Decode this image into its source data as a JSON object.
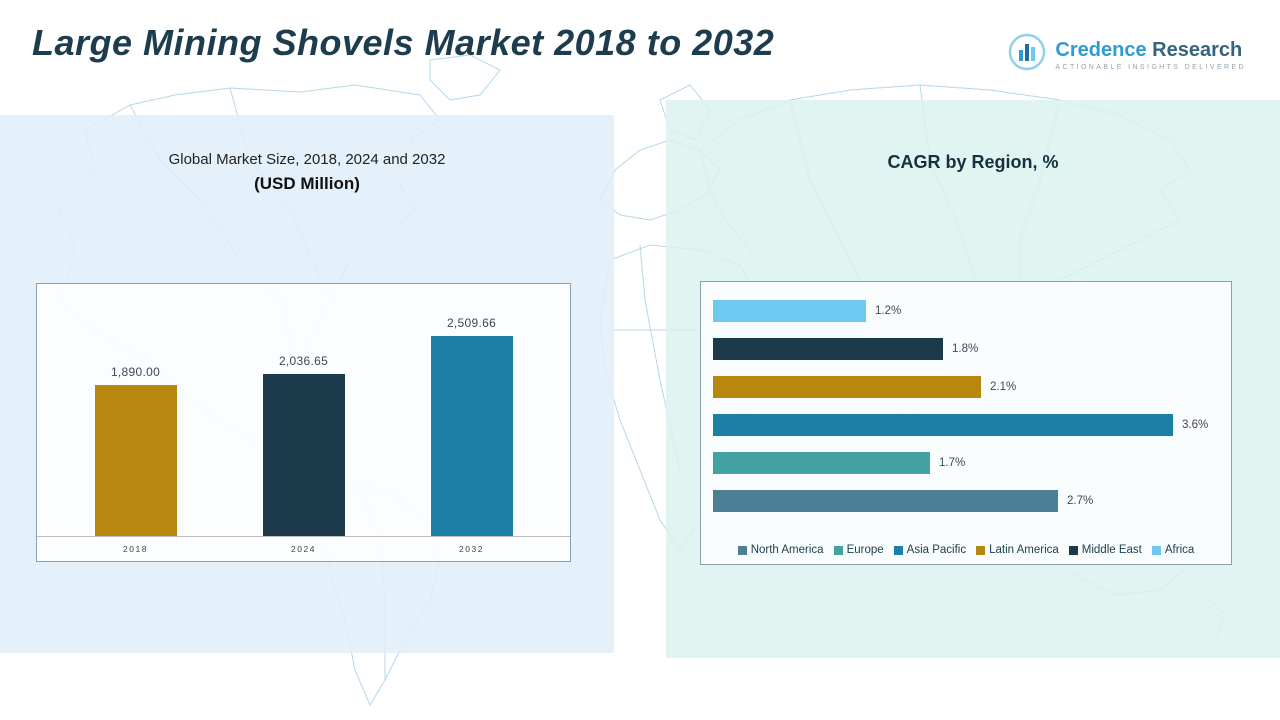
{
  "header": {
    "title": "Large Mining Shovels Market 2018 to 2032",
    "logo": {
      "name_primary": "Credence",
      "name_secondary": "Research",
      "tagline": "Actionable Insights Delivered"
    }
  },
  "left_panel": {
    "title_line1": "Global Market Size, 2018, 2024 and 2032",
    "title_line2": "(USD Million)"
  },
  "right_panel": {
    "title": "CAGR by Region, %"
  },
  "chart_data": [
    {
      "type": "bar",
      "orientation": "vertical",
      "title": "Global Market Size, 2018, 2024 and 2032 (USD Million)",
      "categories": [
        "2018",
        "2024",
        "2032"
      ],
      "values": [
        1890.0,
        2036.65,
        2509.66
      ],
      "labels": [
        "1,890.00",
        "2,036.65",
        "2,509.66"
      ],
      "colors": [
        "#b8870f",
        "#1d3a4a",
        "#1b7fa6"
      ],
      "ylim": [
        0,
        2600
      ],
      "grid": false,
      "legend_position": "none"
    },
    {
      "type": "bar",
      "orientation": "horizontal",
      "title": "CAGR by Region, %",
      "categories": [
        "Africa",
        "Middle East",
        "Latin America",
        "Asia Pacific",
        "Europe",
        "North America"
      ],
      "values": [
        1.2,
        1.8,
        2.1,
        3.6,
        1.7,
        2.7
      ],
      "labels": [
        "1.2%",
        "1.8%",
        "2.1%",
        "3.6%",
        "1.7%",
        "2.7%"
      ],
      "colors": [
        "#6fc8f0",
        "#1d3a4a",
        "#b8870f",
        "#1b7fa6",
        "#43a3a3",
        "#4a7f96"
      ],
      "xlim": [
        0,
        4
      ],
      "grid": false,
      "legend_position": "bottom",
      "legend": [
        "North America",
        "Europe",
        "Asia Pacific",
        "Latin America",
        "Middle East",
        "Africa"
      ],
      "legend_colors": [
        "#4a7f96",
        "#43a3a3",
        "#1b7fa6",
        "#b8870f",
        "#1d3a4a",
        "#6fc8f0"
      ]
    }
  ]
}
